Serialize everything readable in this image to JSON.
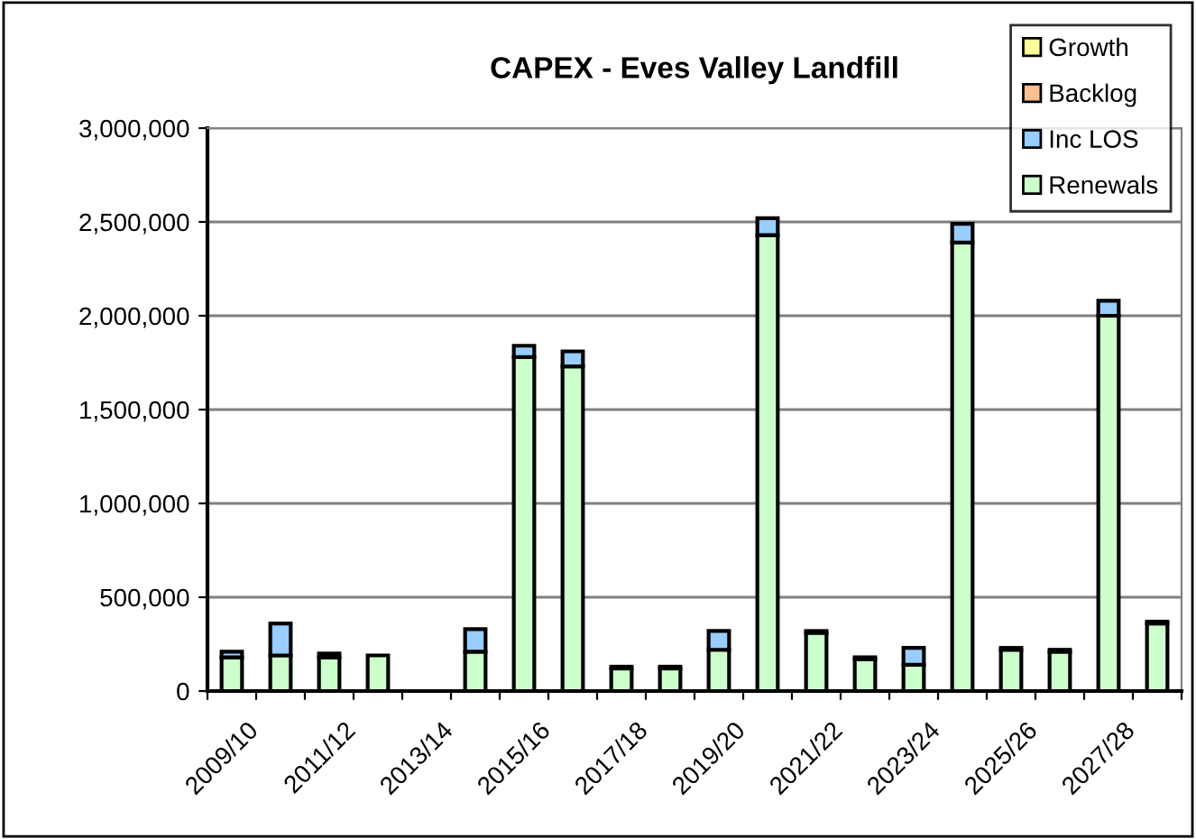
{
  "chart_data": {
    "type": "bar",
    "title": "CAPEX - Eves Valley Landfill",
    "stacked": true,
    "grid": "y",
    "legend": "top right",
    "categories": [
      "2009/10",
      null,
      "2011/12",
      null,
      "2013/14",
      null,
      "2015/16",
      null,
      "2017/18",
      null,
      "2019/20",
      null,
      "2021/22",
      null,
      "2023/24",
      null,
      "2025/26",
      null,
      "2027/28",
      null
    ],
    "series": [
      {
        "name": "Renewals",
        "color": "#ccffcc",
        "values": [
          180000,
          190000,
          180000,
          190000,
          null,
          210000,
          1780000,
          1730000,
          120000,
          120000,
          220000,
          2430000,
          310000,
          170000,
          140000,
          2390000,
          220000,
          210000,
          2000000,
          360000
        ]
      },
      {
        "name": "Inc LOS",
        "color": "#99ccff",
        "values": [
          30000,
          170000,
          20000,
          null,
          null,
          120000,
          60000,
          80000,
          10000,
          10000,
          100000,
          90000,
          10000,
          10000,
          90000,
          100000,
          10000,
          10000,
          80000,
          10000
        ]
      },
      {
        "name": "Backlog",
        "color": "#fac090",
        "values": [
          null,
          null,
          null,
          null,
          null,
          null,
          null,
          null,
          null,
          null,
          null,
          null,
          null,
          null,
          null,
          null,
          null,
          null,
          null,
          null
        ]
      },
      {
        "name": "Growth",
        "color": "#ffff99",
        "values": [
          null,
          null,
          null,
          null,
          null,
          null,
          null,
          null,
          null,
          null,
          null,
          null,
          null,
          null,
          null,
          null,
          null,
          null,
          null,
          null
        ]
      }
    ],
    "ylim": [
      0,
      3000000
    ],
    "yticks": [
      {
        "value": 0,
        "label": "0"
      },
      {
        "value": 500000,
        "label": "500,000"
      },
      {
        "value": 1000000,
        "label": "1,000,000"
      },
      {
        "value": 1500000,
        "label": "1,500,000"
      },
      {
        "value": 2000000,
        "label": "2,000,000"
      },
      {
        "value": 2500000,
        "label": "2,500,000"
      },
      {
        "value": 3000000,
        "label": "3,000,000"
      }
    ]
  }
}
